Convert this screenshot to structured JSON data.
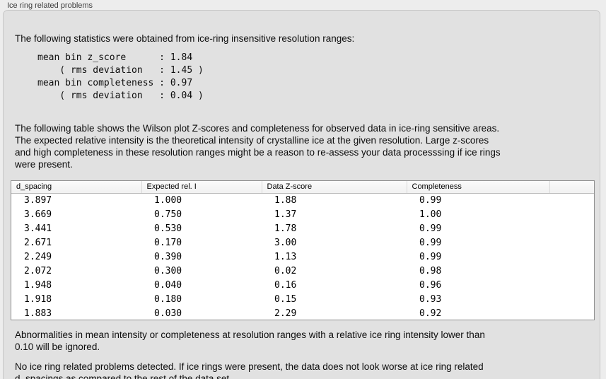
{
  "panel": {
    "title": "Ice ring related problems"
  },
  "intro_text": "The following statistics were obtained from ice-ring insensitive resolution ranges:",
  "stats_block": "mean bin z_score      : 1.84\n    ( rms deviation   : 1.45 )\nmean bin completeness : 0.97\n    ( rms deviation   : 0.04 )",
  "table_description": "The following table shows the Wilson plot Z-scores and completeness for observed data in ice-ring sensitive areas.\nThe expected relative intensity is the theoretical intensity of crystalline ice at the given resolution. Large z-scores\nand high completeness in these resolution ranges might be a reason to re-assess your data processsing if ice rings\nwere present.",
  "table": {
    "columns": [
      "d_spacing",
      "Expected rel. I",
      "Data Z-score",
      "Completeness",
      ""
    ],
    "rows": [
      [
        "3.897",
        "1.000",
        "1.88",
        "0.99"
      ],
      [
        "3.669",
        "0.750",
        "1.37",
        "1.00"
      ],
      [
        "3.441",
        "0.530",
        "1.78",
        "0.99"
      ],
      [
        "2.671",
        "0.170",
        "3.00",
        "0.99"
      ],
      [
        "2.249",
        "0.390",
        "1.13",
        "0.99"
      ],
      [
        "2.072",
        "0.300",
        "0.02",
        "0.98"
      ],
      [
        "1.948",
        "0.040",
        "0.16",
        "0.96"
      ],
      [
        "1.918",
        "0.180",
        "0.15",
        "0.93"
      ],
      [
        "1.883",
        "0.030",
        "2.29",
        "0.92"
      ]
    ]
  },
  "ignore_note": "Abnormalities in mean intensity or completeness at resolution ranges with a relative ice ring intensity lower than\n0.10 will be ignored.",
  "conclusion": "No ice ring related problems detected. If ice rings were present, the data does not look worse at ice ring related\nd_spacings as compared to the rest of the data set.",
  "colors": {
    "page_background": "#ededed",
    "groupbox_background": "#e1e1e1",
    "table_border": "#8f8f8f",
    "text": "#111111"
  }
}
